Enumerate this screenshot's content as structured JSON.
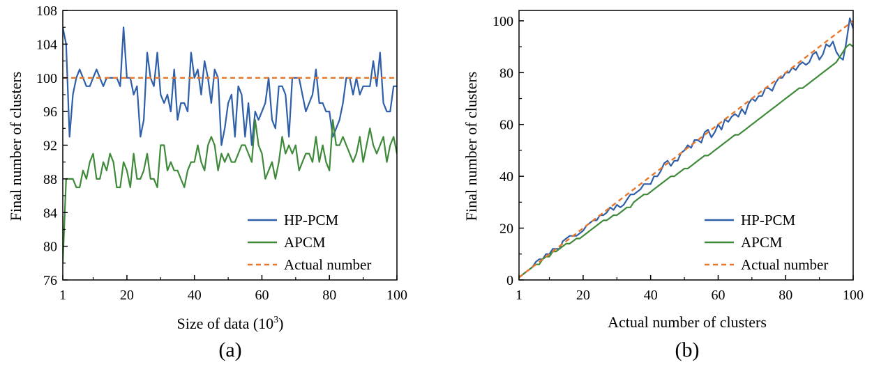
{
  "chart_data": [
    {
      "id": "a",
      "type": "line",
      "panel_label": "(a)",
      "xlabel": "Size of data (10",
      "xlabel_sup": "3",
      "xlabel_close": ")",
      "ylabel": "Final number of clusters",
      "xlim": [
        1,
        100
      ],
      "ylim": [
        76,
        108
      ],
      "xticks": [
        1,
        20,
        40,
        60,
        80,
        100
      ],
      "yticks": [
        76,
        80,
        84,
        88,
        92,
        96,
        100,
        104,
        108
      ],
      "legend_position": "bottom-right",
      "series": [
        {
          "name": "HP-PCM",
          "color": "#2e5fa8",
          "dash": "solid",
          "x": [
            1,
            2,
            3,
            4,
            5,
            6,
            7,
            8,
            9,
            10,
            11,
            12,
            13,
            14,
            15,
            16,
            17,
            18,
            19,
            20,
            21,
            22,
            23,
            24,
            25,
            26,
            27,
            28,
            29,
            30,
            31,
            32,
            33,
            34,
            35,
            36,
            37,
            38,
            39,
            40,
            41,
            42,
            43,
            44,
            45,
            46,
            47,
            48,
            49,
            50,
            51,
            52,
            53,
            54,
            55,
            56,
            57,
            58,
            59,
            60,
            61,
            62,
            63,
            64,
            65,
            66,
            67,
            68,
            69,
            70,
            71,
            72,
            73,
            74,
            75,
            76,
            77,
            78,
            79,
            80,
            81,
            82,
            83,
            84,
            85,
            86,
            87,
            88,
            89,
            90,
            91,
            92,
            93,
            94,
            95,
            96,
            97,
            98,
            99,
            100
          ],
          "values": [
            106,
            104,
            93,
            98,
            100,
            101,
            100,
            99,
            99,
            100,
            101,
            100,
            99,
            100,
            100,
            100,
            100,
            99,
            106,
            100,
            100,
            98,
            99,
            93,
            95,
            103,
            100,
            99,
            103,
            98,
            97,
            98,
            96,
            101,
            95,
            97,
            97,
            96,
            103,
            100,
            101,
            98,
            102,
            100,
            97,
            101,
            100,
            92,
            94,
            97,
            98,
            93,
            99,
            98,
            93,
            97,
            92,
            96,
            95,
            96,
            97,
            100,
            95,
            94,
            99,
            99,
            98,
            93,
            100,
            100,
            100,
            98,
            96,
            97,
            98,
            101,
            97,
            97,
            96,
            96,
            93,
            94,
            95,
            97,
            100,
            100,
            98,
            100,
            98,
            99,
            99,
            99,
            102,
            99,
            103,
            97,
            96,
            96,
            99,
            99
          ]
        },
        {
          "name": "APCM",
          "color": "#3f8a3a",
          "dash": "solid",
          "x": [
            1,
            2,
            3,
            4,
            5,
            6,
            7,
            8,
            9,
            10,
            11,
            12,
            13,
            14,
            15,
            16,
            17,
            18,
            19,
            20,
            21,
            22,
            23,
            24,
            25,
            26,
            27,
            28,
            29,
            30,
            31,
            32,
            33,
            34,
            35,
            36,
            37,
            38,
            39,
            40,
            41,
            42,
            43,
            44,
            45,
            46,
            47,
            48,
            49,
            50,
            51,
            52,
            53,
            54,
            55,
            56,
            57,
            58,
            59,
            60,
            61,
            62,
            63,
            64,
            65,
            66,
            67,
            68,
            69,
            70,
            71,
            72,
            73,
            74,
            75,
            76,
            77,
            78,
            79,
            80,
            81,
            82,
            83,
            84,
            85,
            86,
            87,
            88,
            89,
            90,
            91,
            92,
            93,
            94,
            95,
            96,
            97,
            98,
            99,
            100
          ],
          "values": [
            78,
            88,
            88,
            88,
            87,
            87,
            89,
            88,
            90,
            91,
            88,
            88,
            90,
            89,
            91,
            90,
            87,
            87,
            90,
            89,
            87,
            91,
            88,
            88,
            89,
            91,
            88,
            88,
            87,
            92,
            92,
            89,
            90,
            89,
            89,
            88,
            87,
            89,
            90,
            90,
            92,
            90,
            89,
            92,
            93,
            92,
            89,
            91,
            90,
            91,
            90,
            90,
            91,
            92,
            92,
            91,
            90,
            95,
            92,
            91,
            88,
            89,
            90,
            88,
            90,
            93,
            91,
            92,
            91,
            92,
            89,
            90,
            91,
            91,
            90,
            93,
            90,
            92,
            90,
            89,
            95,
            92,
            92,
            93,
            92,
            91,
            90,
            91,
            93,
            90,
            92,
            94,
            92,
            91,
            92,
            93,
            90,
            92,
            93,
            91
          ]
        },
        {
          "name": "Actual number",
          "color": "#e8762b",
          "dash": "dashed",
          "x": [
            1,
            100
          ],
          "values": [
            100,
            100
          ]
        }
      ]
    },
    {
      "id": "b",
      "type": "line",
      "panel_label": "(b)",
      "xlabel": "Actual number of clusters",
      "ylabel": "Final number of clusters",
      "xlim": [
        1,
        100
      ],
      "ylim": [
        0,
        104
      ],
      "xticks": [
        1,
        20,
        40,
        60,
        80,
        100
      ],
      "yticks": [
        0,
        20,
        40,
        60,
        80,
        100
      ],
      "legend_position": "bottom-right",
      "series": [
        {
          "name": "HP-PCM",
          "color": "#2e5fa8",
          "dash": "solid",
          "x": [
            1,
            2,
            3,
            4,
            5,
            6,
            7,
            8,
            9,
            10,
            11,
            12,
            13,
            14,
            15,
            16,
            17,
            18,
            19,
            20,
            21,
            22,
            23,
            24,
            25,
            26,
            27,
            28,
            29,
            30,
            31,
            32,
            33,
            34,
            35,
            36,
            37,
            38,
            39,
            40,
            41,
            42,
            43,
            44,
            45,
            46,
            47,
            48,
            49,
            50,
            51,
            52,
            53,
            54,
            55,
            56,
            57,
            58,
            59,
            60,
            61,
            62,
            63,
            64,
            65,
            66,
            67,
            68,
            69,
            70,
            71,
            72,
            73,
            74,
            75,
            76,
            77,
            78,
            79,
            80,
            81,
            82,
            83,
            84,
            85,
            86,
            87,
            88,
            89,
            90,
            91,
            92,
            93,
            94,
            95,
            96,
            97,
            98,
            99,
            100
          ],
          "values": [
            1,
            2,
            3,
            4,
            5,
            7,
            8,
            8,
            10,
            10,
            12,
            12,
            12,
            15,
            16,
            17,
            17,
            17,
            18,
            19,
            21,
            22,
            23,
            23,
            25,
            25,
            26,
            28,
            27,
            29,
            28,
            29,
            31,
            33,
            33,
            34,
            35,
            37,
            37,
            37,
            40,
            40,
            42,
            45,
            46,
            44,
            46,
            46,
            49,
            50,
            52,
            51,
            54,
            54,
            53,
            57,
            58,
            55,
            57,
            60,
            58,
            62,
            61,
            63,
            64,
            63,
            66,
            64,
            68,
            70,
            69,
            71,
            71,
            74,
            74,
            73,
            76,
            78,
            78,
            80,
            80,
            82,
            81,
            83,
            84,
            83,
            84,
            87,
            88,
            85,
            87,
            91,
            90,
            92,
            88,
            86,
            85,
            92,
            101,
            97
          ]
        },
        {
          "name": "APCM",
          "color": "#3f8a3a",
          "dash": "solid",
          "x": [
            1,
            2,
            3,
            4,
            5,
            6,
            7,
            8,
            9,
            10,
            11,
            12,
            13,
            14,
            15,
            16,
            17,
            18,
            19,
            20,
            21,
            22,
            23,
            24,
            25,
            26,
            27,
            28,
            29,
            30,
            31,
            32,
            33,
            34,
            35,
            36,
            37,
            38,
            39,
            40,
            41,
            42,
            43,
            44,
            45,
            46,
            47,
            48,
            49,
            50,
            51,
            52,
            53,
            54,
            55,
            56,
            57,
            58,
            59,
            60,
            61,
            62,
            63,
            64,
            65,
            66,
            67,
            68,
            69,
            70,
            71,
            72,
            73,
            74,
            75,
            76,
            77,
            78,
            79,
            80,
            81,
            82,
            83,
            84,
            85,
            86,
            87,
            88,
            89,
            90,
            91,
            92,
            93,
            94,
            95,
            96,
            97,
            98,
            99,
            100
          ],
          "values": [
            1,
            2,
            3,
            4,
            5,
            6,
            6,
            8,
            9,
            9,
            11,
            11,
            12,
            13,
            14,
            14,
            15,
            16,
            16,
            17,
            18,
            19,
            20,
            21,
            22,
            23,
            23,
            24,
            25,
            25,
            26,
            27,
            28,
            28,
            30,
            31,
            32,
            33,
            33,
            34,
            35,
            36,
            37,
            38,
            39,
            40,
            40,
            41,
            42,
            43,
            43,
            44,
            45,
            46,
            47,
            48,
            48,
            49,
            50,
            51,
            52,
            53,
            54,
            55,
            56,
            56,
            57,
            58,
            59,
            60,
            61,
            62,
            63,
            64,
            65,
            66,
            67,
            68,
            69,
            70,
            71,
            72,
            73,
            74,
            74,
            75,
            76,
            77,
            78,
            79,
            80,
            81,
            82,
            83,
            84,
            86,
            88,
            90,
            91,
            90
          ]
        },
        {
          "name": "Actual number",
          "color": "#e8762b",
          "dash": "dashed",
          "x": [
            1,
            100
          ],
          "values": [
            1,
            100
          ]
        }
      ]
    }
  ]
}
